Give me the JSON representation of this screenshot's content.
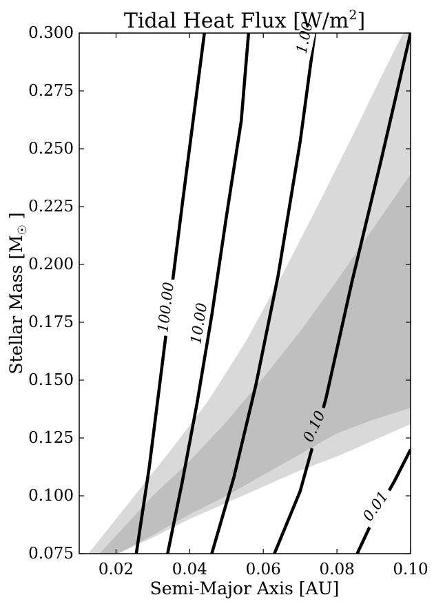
{
  "chart_data": {
    "type": "contour",
    "title_main": "Tidal Heat Flux [W/m",
    "title_sup": "2",
    "title_end": "]",
    "xlabel": "Semi-Major Axis [AU]",
    "ylabel_main": "Stellar Mass [M",
    "ylabel_sym": "☉",
    "ylabel_end": " ]",
    "xlim": [
      0.01,
      0.1
    ],
    "ylim": [
      0.075,
      0.3
    ],
    "xticks": [
      {
        "value": 0.02,
        "label": "0.02"
      },
      {
        "value": 0.04,
        "label": "0.04"
      },
      {
        "value": 0.06,
        "label": "0.06"
      },
      {
        "value": 0.08,
        "label": "0.08"
      },
      {
        "value": 0.1,
        "label": "0.10"
      }
    ],
    "yticks": [
      {
        "value": 0.075,
        "label": "0.075"
      },
      {
        "value": 0.1,
        "label": "0.100"
      },
      {
        "value": 0.125,
        "label": "0.125"
      },
      {
        "value": 0.15,
        "label": "0.150"
      },
      {
        "value": 0.175,
        "label": "0.175"
      },
      {
        "value": 0.2,
        "label": "0.200"
      },
      {
        "value": 0.225,
        "label": "0.225"
      },
      {
        "value": 0.25,
        "label": "0.250"
      },
      {
        "value": 0.275,
        "label": "0.275"
      },
      {
        "value": 0.3,
        "label": "0.300"
      }
    ],
    "regions": [
      {
        "shade": "#d9d9d9",
        "inner": [
          [
            0.0125,
            0.075
          ],
          [
            0.025,
            0.1
          ],
          [
            0.035,
            0.12
          ],
          [
            0.045,
            0.141
          ],
          [
            0.055,
            0.166
          ],
          [
            0.065,
            0.195
          ],
          [
            0.075,
            0.226
          ],
          [
            0.085,
            0.258
          ],
          [
            0.092,
            0.281
          ],
          [
            0.098,
            0.3
          ]
        ],
        "outer": [
          [
            0.0205,
            0.075
          ],
          [
            0.03,
            0.082
          ],
          [
            0.04,
            0.09
          ],
          [
            0.05,
            0.097
          ],
          [
            0.06,
            0.104
          ],
          [
            0.07,
            0.111
          ],
          [
            0.08,
            0.117
          ],
          [
            0.09,
            0.124
          ],
          [
            0.1,
            0.131
          ]
        ]
      },
      {
        "shade": "#bfbfbf",
        "inner": [
          [
            0.0155,
            0.075
          ],
          [
            0.03,
            0.1
          ],
          [
            0.04,
            0.115
          ],
          [
            0.05,
            0.132
          ],
          [
            0.06,
            0.151
          ],
          [
            0.07,
            0.171
          ],
          [
            0.08,
            0.193
          ],
          [
            0.09,
            0.216
          ],
          [
            0.1,
            0.239
          ]
        ],
        "outer": [
          [
            0.0205,
            0.075
          ],
          [
            0.03,
            0.083
          ],
          [
            0.04,
            0.092
          ],
          [
            0.05,
            0.1
          ],
          [
            0.06,
            0.109
          ],
          [
            0.07,
            0.118
          ],
          [
            0.08,
            0.127
          ],
          [
            0.09,
            0.133
          ],
          [
            0.1,
            0.138
          ]
        ]
      }
    ],
    "contours": [
      {
        "level": "100.00",
        "label_at": [
          0.0335,
          0.1815
        ],
        "angle": -83,
        "points": [
          [
            0.0255,
            0.075
          ],
          [
            0.029,
            0.112
          ],
          [
            0.032,
            0.15
          ],
          [
            0.035,
            0.188
          ],
          [
            0.038,
            0.226
          ],
          [
            0.041,
            0.263
          ],
          [
            0.044,
            0.3
          ]
        ]
      },
      {
        "level": "10.00",
        "label_at": [
          0.0425,
          0.1745
        ],
        "angle": -81,
        "points": [
          [
            0.034,
            0.075
          ],
          [
            0.038,
            0.106
          ],
          [
            0.042,
            0.14
          ],
          [
            0.046,
            0.178
          ],
          [
            0.05,
            0.221
          ],
          [
            0.054,
            0.262
          ],
          [
            0.056,
            0.3
          ]
        ]
      },
      {
        "level": "1.00",
        "label_at": [
          0.0712,
          0.298
        ],
        "angle": -78,
        "points": [
          [
            0.046,
            0.075
          ],
          [
            0.052,
            0.108
          ],
          [
            0.058,
            0.148
          ],
          [
            0.064,
            0.195
          ],
          [
            0.07,
            0.253
          ],
          [
            0.074,
            0.3
          ]
        ]
      },
      {
        "level": "0.10",
        "label_at": [
          0.0738,
          0.13
        ],
        "angle": -65,
        "points": [
          [
            0.063,
            0.075
          ],
          [
            0.07,
            0.102
          ],
          [
            0.077,
            0.142
          ],
          [
            0.084,
            0.192
          ],
          [
            0.092,
            0.245
          ],
          [
            0.1,
            0.3
          ]
        ]
      },
      {
        "level": "0.01",
        "label_at": [
          0.0905,
          0.0955
        ],
        "angle": -55,
        "points": [
          [
            0.0855,
            0.075
          ],
          [
            0.0905,
            0.092
          ],
          [
            0.0955,
            0.106
          ],
          [
            0.1,
            0.12
          ]
        ]
      }
    ]
  }
}
